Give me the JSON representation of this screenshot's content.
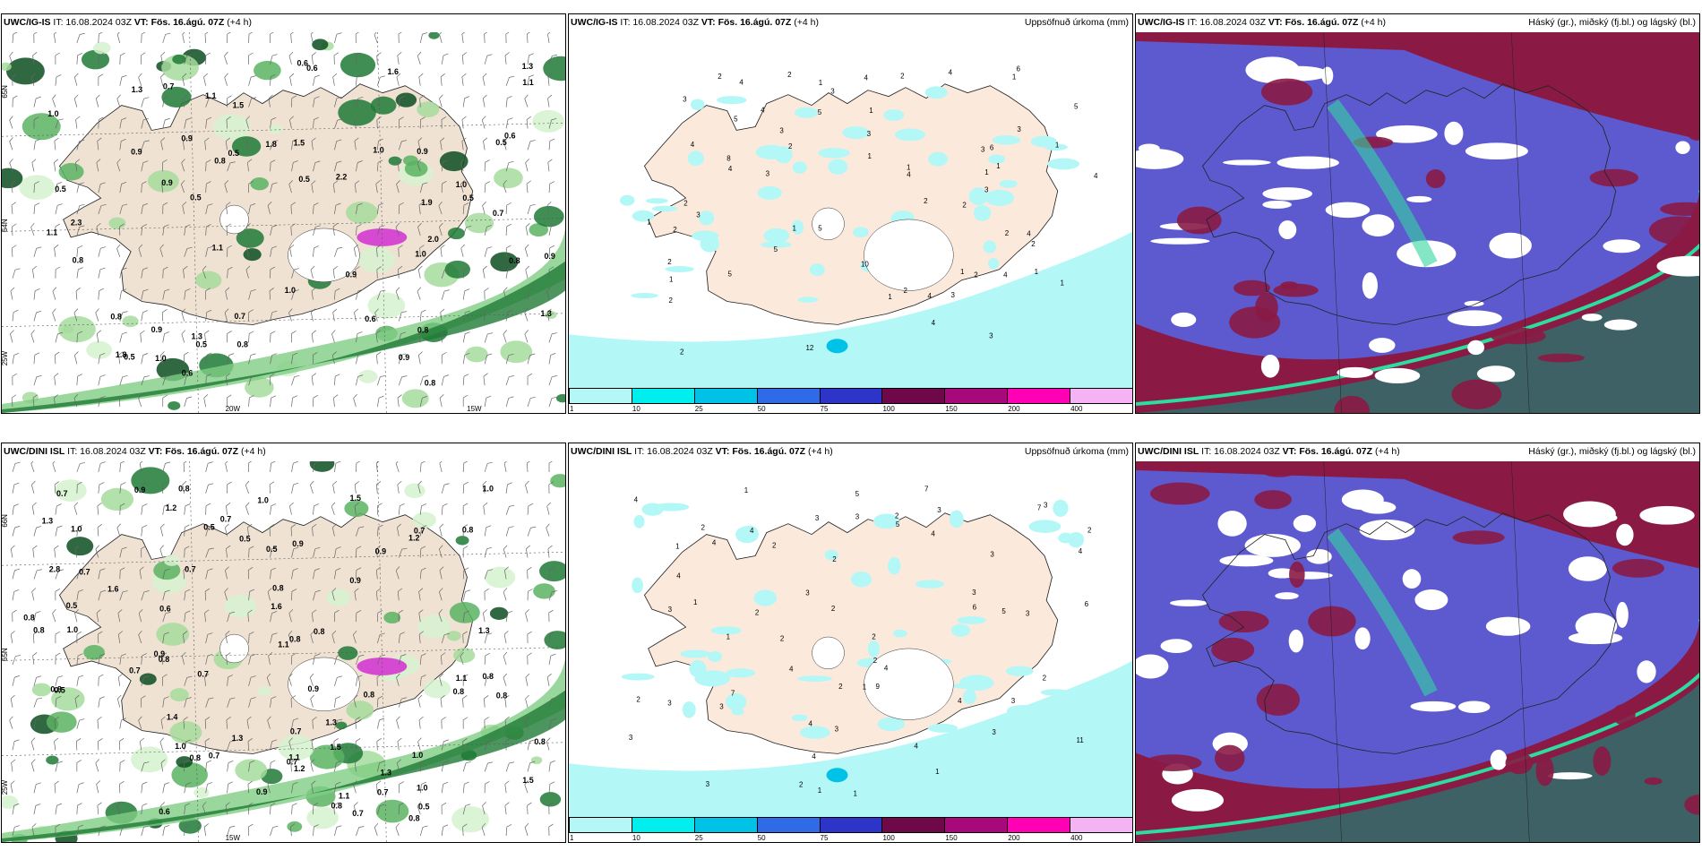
{
  "panels": [
    {
      "model": "UWC/IG-IS",
      "it": "IT: 16.08.2024 03Z",
      "vt_label": "VT:",
      "vt": "Fös. 16.ágú. 07Z",
      "lead": "(+4 h)",
      "right_title": "",
      "lat_left": [
        "65N",
        "64N",
        "25W"
      ],
      "lon_bottom": [
        "20W",
        "15W"
      ],
      "labels": [
        "1.0",
        "0.7",
        "0.9",
        "0.7",
        "0.5",
        "1.3",
        "0.5",
        "2.0",
        "1.3",
        "0.9",
        "1.1",
        "0.6",
        "0.8",
        "1.0",
        "0.6",
        "0.5",
        "1.5",
        "0.9",
        "0.8",
        "1.0",
        "0.6",
        "0.5",
        "0.6",
        "0.6",
        "0.5",
        "1.8",
        "1.0",
        "0.5",
        "1.1",
        "0.8",
        "0.8",
        "1.8",
        "1.6",
        "0.9",
        "1.9",
        "1.3",
        "1.1",
        "0.9",
        "0.5",
        "0.8",
        "0.5",
        "0.8",
        "0.7",
        "1.0",
        "0.9",
        "0.9",
        "1.5",
        "1.3",
        "2.2",
        "2.3",
        "0.8",
        "0.9",
        "1.0",
        "1.1"
      ]
    },
    {
      "model": "UWC/IG-IS",
      "it": "IT: 16.08.2024 03Z",
      "vt_label": "VT:",
      "vt": "Fös. 16.ágú. 07Z",
      "lead": "(+4 h)",
      "right_title": "Uppsöfnuð úrkoma (mm)",
      "labels": [
        "2",
        "1",
        "2",
        "1",
        "2",
        "5",
        "4",
        "4",
        "3",
        "2",
        "1",
        "2",
        "1",
        "2",
        "3",
        "4",
        "3",
        "2",
        "1",
        "2",
        "5",
        "3",
        "2",
        "1",
        "1",
        "4",
        "2",
        "2",
        "3",
        "2",
        "1",
        "1",
        "4",
        "1",
        "1",
        "3",
        "2",
        "5",
        "6",
        "4",
        "4",
        "1",
        "2",
        "3",
        "1",
        "4",
        "2",
        "6",
        "4",
        "10",
        "12",
        "8",
        "3",
        "4",
        "5",
        "5",
        "4",
        "4",
        "5",
        "3",
        "3",
        "3",
        "1",
        "1"
      ]
    },
    {
      "model": "UWC/IG-IS",
      "it": "IT: 16.08.2024 03Z",
      "vt_label": "VT:",
      "vt": "Fös. 16.ágú. 07Z",
      "lead": "(+4 h)",
      "right_title": "Háský (gr.), miðský (fj.bl.) og lágský (bl.)"
    },
    {
      "model": "UWC/DINI ISL",
      "it": "IT: 16.08.2024 03Z",
      "vt_label": "VT:",
      "vt": "Fös. 16.ágú. 07Z",
      "lead": "(+4 h)",
      "right_title": "",
      "lat_left": [
        "66N",
        "65N",
        "25W"
      ],
      "lon_bottom": [
        "15W"
      ],
      "labels": [
        "0.7",
        "1.1",
        "0.7",
        "1.4",
        "0.8",
        "0.7",
        "0.8",
        "0.5",
        "1.3",
        "0.9",
        "0.8",
        "0.9",
        "1.2",
        "0.7",
        "1.0",
        "0.8",
        "0.5",
        "0.6",
        "0.8",
        "0.8",
        "0.5",
        "0.7",
        "0.9",
        "0.8",
        "1.1",
        "0.7",
        "1.3",
        "0.7",
        "0.5",
        "0.8",
        "1.0",
        "0.9",
        "1.5",
        "1.3",
        "0.7",
        "1.2",
        "0.5",
        "1.5",
        "0.7",
        "1.0",
        "1.2",
        "0.6",
        "1.6",
        "0.8",
        "0.5",
        "0.7",
        "0.9",
        "1.0",
        "0.8",
        "1.5",
        "0.8",
        "0.7",
        "1.1",
        "1.0",
        "0.8",
        "1.3",
        "0.8",
        "1.6",
        "0.9",
        "1.0",
        "1.1",
        "0.8",
        "0.8",
        "0.7",
        "1.0",
        "0.8",
        "0.9",
        "2.8",
        "1.3",
        "0.8"
      ]
    },
    {
      "model": "UWC/DINI ISL",
      "it": "IT: 16.08.2024 03Z",
      "vt_label": "VT:",
      "vt": "Fös. 16.ágú. 07Z",
      "lead": "(+4 h)",
      "right_title": "Uppsöfnuð úrkoma (mm)",
      "labels": [
        "2",
        "1",
        "1",
        "5",
        "3",
        "4",
        "3",
        "2",
        "2",
        "1",
        "5",
        "3",
        "2",
        "2",
        "1",
        "4",
        "3",
        "2",
        "3",
        "1",
        "2",
        "4",
        "5",
        "3",
        "2",
        "1",
        "2",
        "1",
        "4",
        "6",
        "3",
        "4",
        "3",
        "2",
        "3",
        "3",
        "4",
        "7",
        "4",
        "7",
        "3",
        "2",
        "9",
        "11",
        "3",
        "4",
        "6",
        "3",
        "3",
        "3",
        "4",
        "2",
        "2",
        "2",
        "4",
        "7",
        "4",
        "4",
        "1",
        "3"
      ]
    },
    {
      "model": "UWC/DINI ISL",
      "it": "IT: 16.08.2024 03Z",
      "vt_label": "VT:",
      "vt": "Fös. 16.ágú. 07Z",
      "lead": "(+4 h)",
      "right_title": "Háský (gr.), miðský (fj.bl.) og lágský (bl.)"
    }
  ],
  "colorbar": {
    "ticks": [
      "1",
      "10",
      "25",
      "50",
      "75",
      "100",
      "150",
      "200",
      "400"
    ],
    "colors": [
      "#b4f7f7",
      "#00eeee",
      "#00c2e6",
      "#2f6be6",
      "#2c35c8",
      "#6f0848",
      "#a7087a",
      "#ff00b4",
      "#f4b4f4"
    ]
  }
}
